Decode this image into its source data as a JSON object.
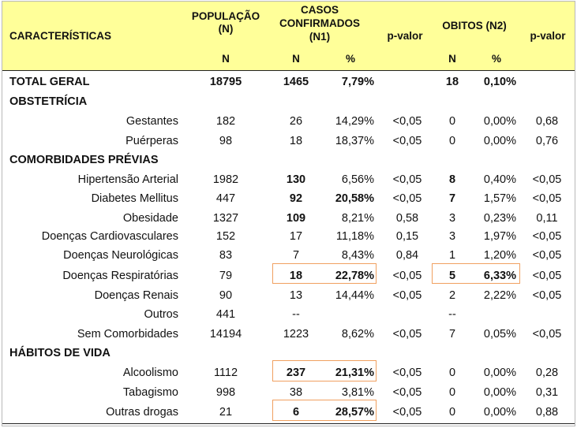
{
  "headers": {
    "caracteristicas": "CARACTERÍSTICAS",
    "populacao": [
      "POPULAÇÃO",
      "(N)"
    ],
    "casos": [
      "CASOS",
      "CONFIRMADOS",
      "(N1)"
    ],
    "pvalor1": "p-valor",
    "obitos": "OBITOS (N2)",
    "pvalor2": "p-valor",
    "sub_pop_n": "N",
    "sub_casos_n": "N",
    "sub_casos_pct": "%",
    "sub_obitos_n": "N",
    "sub_obitos_pct": "%"
  },
  "total": {
    "label": "TOTAL GERAL",
    "pop": "18795",
    "n1": "1465",
    "pct1": "7,79%",
    "pv1": "",
    "n2": "18",
    "pct2": "0,10%",
    "pv2": ""
  },
  "sections": [
    {
      "title": "OBSTETRÍCIA",
      "rows": [
        {
          "label": "Gestantes",
          "pop": "182",
          "n1": "26",
          "pct1": "14,29%",
          "pv1": "<0,05",
          "n2": "0",
          "pct2": "0,00%",
          "pv2": "0,68"
        },
        {
          "label": "Puérperas",
          "pop": "98",
          "n1": "18",
          "pct1": "18,37%",
          "pv1": "<0,05",
          "n2": "0",
          "pct2": "0,00%",
          "pv2": "0,76"
        }
      ]
    },
    {
      "title": "COMORBIDADES PRÉVIAS",
      "rows": [
        {
          "label": "Hipertensão Arterial",
          "pop": "1982",
          "n1": "130",
          "pct1": "6,56%",
          "pv1": "<0,05",
          "n2": "8",
          "pct2": "0,40%",
          "pv2": "<0,05"
        },
        {
          "label": "Diabetes Mellitus",
          "pop": "447",
          "n1": "92",
          "pct1": "20,58%",
          "pv1": "<0,05",
          "n2": "7",
          "pct2": "1,57%",
          "pv2": "<0,05"
        },
        {
          "label": "Obesidade",
          "pop": "1327",
          "n1": "109",
          "pct1": "8,21%",
          "pv1": "0,58",
          "n2": "3",
          "pct2": "0,23%",
          "pv2": "0,11"
        },
        {
          "label": "Doenças Cardiovasculares",
          "pop": "152",
          "n1": "17",
          "pct1": "11,18%",
          "pv1": "0,15",
          "n2": "3",
          "pct2": "1,97%",
          "pv2": "<0,05"
        },
        {
          "label": "Doenças Neurológicas",
          "pop": "83",
          "n1": "7",
          "pct1": "8,43%",
          "pv1": "0,84",
          "n2": "1",
          "pct2": "1,20%",
          "pv2": "<0,05"
        },
        {
          "label": "Doenças Respiratórias",
          "pop": "79",
          "n1": "18",
          "pct1": "22,78%",
          "pv1": "<0,05",
          "n2": "5",
          "pct2": "6,33%",
          "pv2": "<0,05"
        },
        {
          "label": "Doenças Renais",
          "pop": "90",
          "n1": "13",
          "pct1": "14,44%",
          "pv1": "<0,05",
          "n2": "2",
          "pct2": "2,22%",
          "pv2": "<0,05"
        },
        {
          "label": "Outros",
          "pop": "441",
          "n1": "--",
          "pct1": "",
          "pv1": "",
          "n2": "--",
          "pct2": "",
          "pv2": ""
        },
        {
          "label": "Sem Comorbidades",
          "pop": "14194",
          "n1": "1223",
          "pct1": "8,62%",
          "pv1": "<0,05",
          "n2": "7",
          "pct2": "0,05%",
          "pv2": "<0,05"
        }
      ]
    },
    {
      "title": "HÁBITOS DE VIDA",
      "rows": [
        {
          "label": "Alcoolismo",
          "pop": "1112",
          "n1": "237",
          "pct1": "21,31%",
          "pv1": "<0,05",
          "n2": "0",
          "pct2": "0,00%",
          "pv2": "0,28"
        },
        {
          "label": "Tabagismo",
          "pop": "998",
          "n1": "38",
          "pct1": "3,81%",
          "pv1": "<0,05",
          "n2": "0",
          "pct2": "0,00%",
          "pv2": "0,31"
        },
        {
          "label": "Outras drogas",
          "pop": "21",
          "n1": "6",
          "pct1": "28,57%",
          "pv1": "<0,05",
          "n2": "0",
          "pct2": "0,00%",
          "pv2": "0,88"
        }
      ]
    }
  ],
  "colors": {
    "header_bg": "#ffff99",
    "highlight_border": "#f0a060",
    "rule": "#222222"
  }
}
